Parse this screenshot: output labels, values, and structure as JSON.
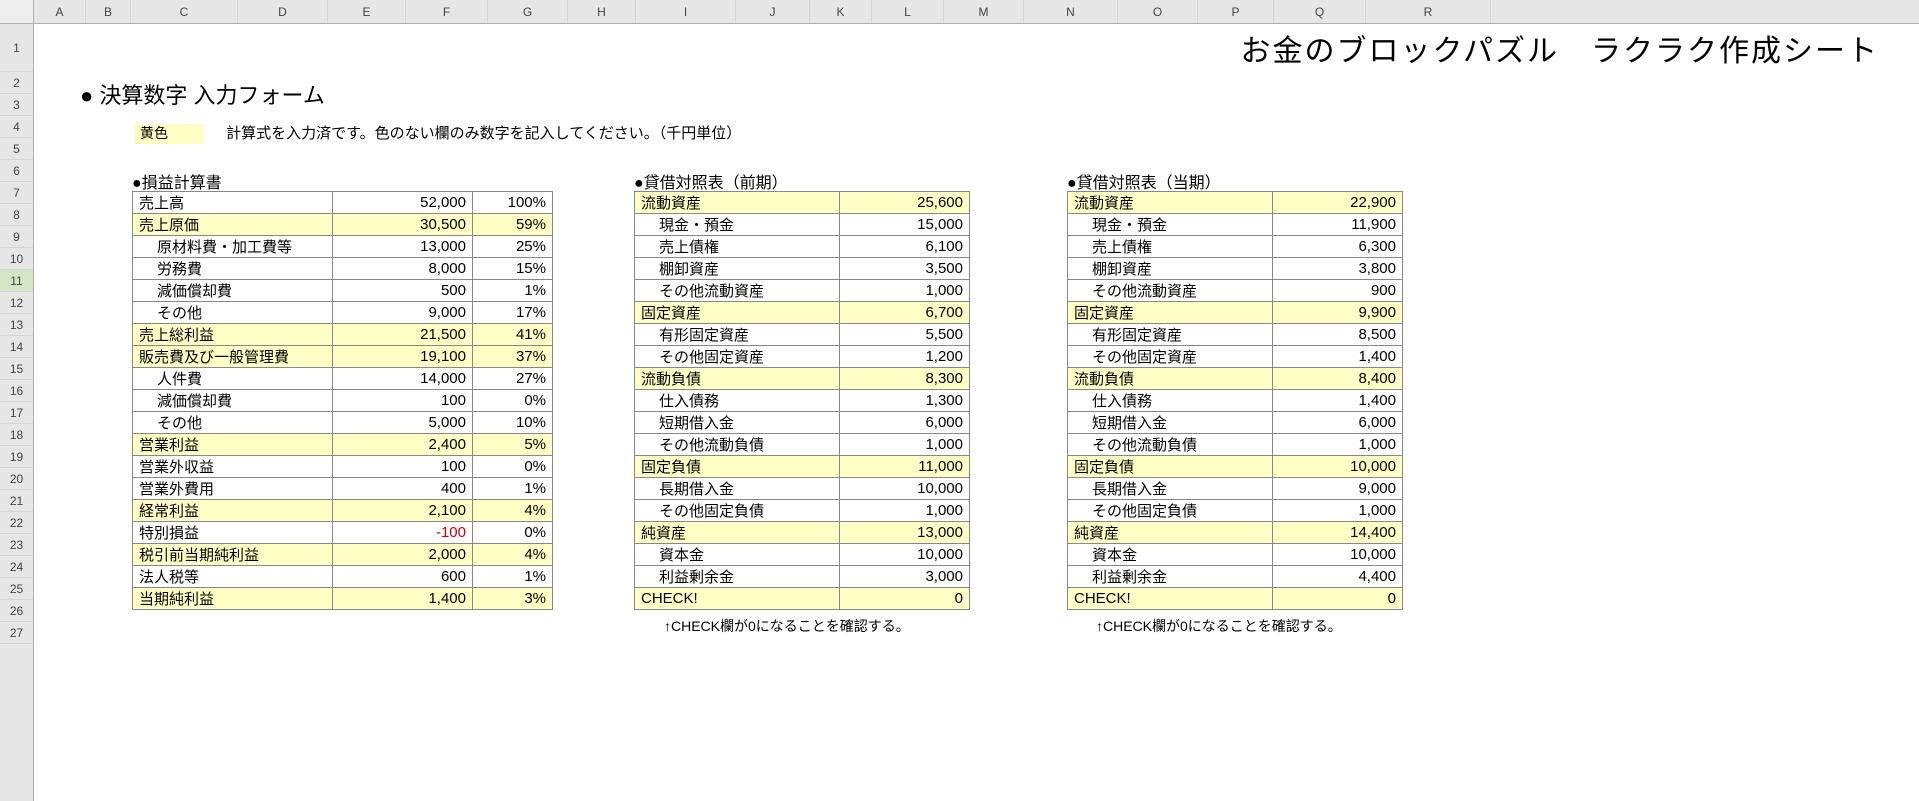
{
  "colors": {
    "highlight": "#ffffc5",
    "gridline": "#d0d0d0",
    "header_bg": "#e6e6e6",
    "selected_row": "#d4e6c4",
    "negative": "#cc0000",
    "border": "#888888"
  },
  "row_headers": [
    "1",
    "2",
    "3",
    "4",
    "5",
    "6",
    "7",
    "8",
    "9",
    "10",
    "11",
    "12",
    "13",
    "14",
    "15",
    "16",
    "17",
    "18",
    "19",
    "20",
    "21",
    "22",
    "23",
    "24",
    "25",
    "26",
    "27"
  ],
  "selected_row_idx": 10,
  "col_headers": [
    "A",
    "B",
    "C",
    "D",
    "E",
    "F",
    "G",
    "H",
    "I",
    "J",
    "K",
    "L",
    "M",
    "N",
    "O",
    "P",
    "Q",
    "R"
  ],
  "big_title": "お金のブロックパズル　ラクラク作成シート",
  "section_heading": "● 決算数字 入力フォーム",
  "hint_swatch_label": "黄色",
  "hint_text": "計算式を入力済です。色のない欄のみ数字を記入してください。（千円単位）",
  "pl": {
    "title": "●損益計算書",
    "rows": [
      {
        "label": "売上高",
        "value": "52,000",
        "pct": "100%",
        "hl": false,
        "indent": false,
        "neg": false
      },
      {
        "label": "売上原価",
        "value": "30,500",
        "pct": "59%",
        "hl": true,
        "indent": false,
        "neg": false
      },
      {
        "label": "原材料費・加工費等",
        "value": "13,000",
        "pct": "25%",
        "hl": false,
        "indent": true,
        "neg": false
      },
      {
        "label": "労務費",
        "value": "8,000",
        "pct": "15%",
        "hl": false,
        "indent": true,
        "neg": false
      },
      {
        "label": "減価償却費",
        "value": "500",
        "pct": "1%",
        "hl": false,
        "indent": true,
        "neg": false
      },
      {
        "label": "その他",
        "value": "9,000",
        "pct": "17%",
        "hl": false,
        "indent": true,
        "neg": false
      },
      {
        "label": "売上総利益",
        "value": "21,500",
        "pct": "41%",
        "hl": true,
        "indent": false,
        "neg": false
      },
      {
        "label": "販売費及び一般管理費",
        "value": "19,100",
        "pct": "37%",
        "hl": true,
        "indent": false,
        "neg": false
      },
      {
        "label": "人件費",
        "value": "14,000",
        "pct": "27%",
        "hl": false,
        "indent": true,
        "neg": false
      },
      {
        "label": "減価償却費",
        "value": "100",
        "pct": "0%",
        "hl": false,
        "indent": true,
        "neg": false
      },
      {
        "label": "その他",
        "value": "5,000",
        "pct": "10%",
        "hl": false,
        "indent": true,
        "neg": false
      },
      {
        "label": "営業利益",
        "value": "2,400",
        "pct": "5%",
        "hl": true,
        "indent": false,
        "neg": false
      },
      {
        "label": "営業外収益",
        "value": "100",
        "pct": "0%",
        "hl": false,
        "indent": false,
        "neg": false
      },
      {
        "label": "営業外費用",
        "value": "400",
        "pct": "1%",
        "hl": false,
        "indent": false,
        "neg": false
      },
      {
        "label": "経常利益",
        "value": "2,100",
        "pct": "4%",
        "hl": true,
        "indent": false,
        "neg": false
      },
      {
        "label": "特別損益",
        "value": "-100",
        "pct": "0%",
        "hl": false,
        "indent": false,
        "neg": true
      },
      {
        "label": "税引前当期純利益",
        "value": "2,000",
        "pct": "4%",
        "hl": true,
        "indent": false,
        "neg": false
      },
      {
        "label": "法人税等",
        "value": "600",
        "pct": "1%",
        "hl": false,
        "indent": false,
        "neg": false
      },
      {
        "label": "当期純利益",
        "value": "1,400",
        "pct": "3%",
        "hl": true,
        "indent": false,
        "neg": false
      }
    ]
  },
  "bs_prev": {
    "title": "●貸借対照表（前期）",
    "rows": [
      {
        "label": "流動資産",
        "value": "25,600",
        "hl": true,
        "indent": false
      },
      {
        "label": "現金・預金",
        "value": "15,000",
        "hl": false,
        "indent": true
      },
      {
        "label": "売上債権",
        "value": "6,100",
        "hl": false,
        "indent": true
      },
      {
        "label": "棚卸資産",
        "value": "3,500",
        "hl": false,
        "indent": true
      },
      {
        "label": "その他流動資産",
        "value": "1,000",
        "hl": false,
        "indent": true
      },
      {
        "label": "固定資産",
        "value": "6,700",
        "hl": true,
        "indent": false
      },
      {
        "label": "有形固定資産",
        "value": "5,500",
        "hl": false,
        "indent": true
      },
      {
        "label": "その他固定資産",
        "value": "1,200",
        "hl": false,
        "indent": true
      },
      {
        "label": "流動負債",
        "value": "8,300",
        "hl": true,
        "indent": false
      },
      {
        "label": "仕入債務",
        "value": "1,300",
        "hl": false,
        "indent": true
      },
      {
        "label": "短期借入金",
        "value": "6,000",
        "hl": false,
        "indent": true
      },
      {
        "label": "その他流動負債",
        "value": "1,000",
        "hl": false,
        "indent": true
      },
      {
        "label": "固定負債",
        "value": "11,000",
        "hl": true,
        "indent": false
      },
      {
        "label": "長期借入金",
        "value": "10,000",
        "hl": false,
        "indent": true
      },
      {
        "label": "その他固定負債",
        "value": "1,000",
        "hl": false,
        "indent": true
      },
      {
        "label": "純資産",
        "value": "13,000",
        "hl": true,
        "indent": false
      },
      {
        "label": "資本金",
        "value": "10,000",
        "hl": false,
        "indent": true
      },
      {
        "label": "利益剰余金",
        "value": "3,000",
        "hl": false,
        "indent": true
      },
      {
        "label": "CHECK!",
        "value": "0",
        "hl": true,
        "indent": false
      }
    ],
    "footer": "↑CHECK欄が0になることを確認する。"
  },
  "bs_curr": {
    "title": "●貸借対照表（当期）",
    "rows": [
      {
        "label": "流動資産",
        "value": "22,900",
        "hl": true,
        "indent": false
      },
      {
        "label": "現金・預金",
        "value": "11,900",
        "hl": false,
        "indent": true
      },
      {
        "label": "売上債権",
        "value": "6,300",
        "hl": false,
        "indent": true
      },
      {
        "label": "棚卸資産",
        "value": "3,800",
        "hl": false,
        "indent": true
      },
      {
        "label": "その他流動資産",
        "value": "900",
        "hl": false,
        "indent": true
      },
      {
        "label": "固定資産",
        "value": "9,900",
        "hl": true,
        "indent": false
      },
      {
        "label": "有形固定資産",
        "value": "8,500",
        "hl": false,
        "indent": true
      },
      {
        "label": "その他固定資産",
        "value": "1,400",
        "hl": false,
        "indent": true
      },
      {
        "label": "流動負債",
        "value": "8,400",
        "hl": true,
        "indent": false
      },
      {
        "label": "仕入債務",
        "value": "1,400",
        "hl": false,
        "indent": true
      },
      {
        "label": "短期借入金",
        "value": "6,000",
        "hl": false,
        "indent": true
      },
      {
        "label": "その他流動負債",
        "value": "1,000",
        "hl": false,
        "indent": true
      },
      {
        "label": "固定負債",
        "value": "10,000",
        "hl": true,
        "indent": false
      },
      {
        "label": "長期借入金",
        "value": "9,000",
        "hl": false,
        "indent": true
      },
      {
        "label": "その他固定負債",
        "value": "1,000",
        "hl": false,
        "indent": true
      },
      {
        "label": "純資産",
        "value": "14,400",
        "hl": true,
        "indent": false
      },
      {
        "label": "資本金",
        "value": "10,000",
        "hl": false,
        "indent": true
      },
      {
        "label": "利益剰余金",
        "value": "4,400",
        "hl": false,
        "indent": true
      },
      {
        "label": "CHECK!",
        "value": "0",
        "hl": true,
        "indent": false
      }
    ],
    "footer": "↑CHECK欄が0になることを確認する。"
  }
}
